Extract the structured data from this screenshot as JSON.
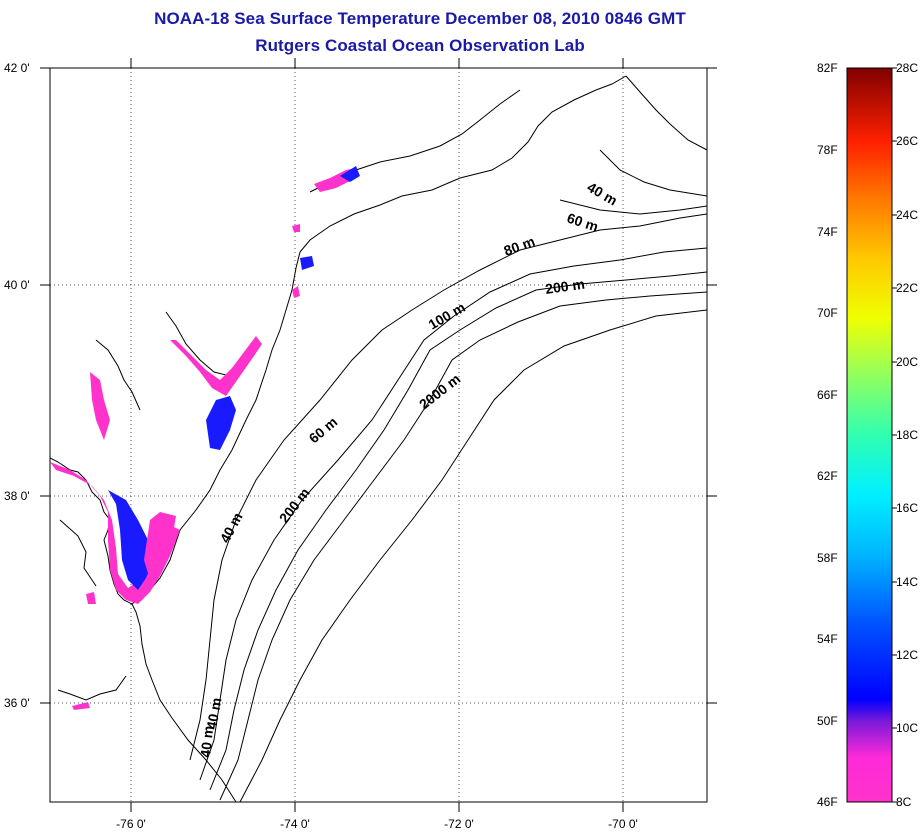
{
  "header": {
    "title": "NOAA-18 Sea Surface Temperature December 08, 2010 0846 GMT",
    "subtitle": "Rutgers Coastal Ocean Observation Lab"
  },
  "map": {
    "lat_labels": [
      "42 0'",
      "40 0'",
      "38 0'",
      "36 0'"
    ],
    "lon_labels": [
      "-76 0'",
      "-74 0'",
      "-72 0'",
      "-70 0'"
    ],
    "depth_labels": [
      "40 m",
      "60 m",
      "80 m",
      "200 m",
      "100 m",
      "2000 m",
      "60 m",
      "40 m",
      "200 m",
      "40 m",
      "40 m"
    ]
  },
  "colorbar": {
    "fahrenheit_labels": [
      "82F",
      "78F",
      "74F",
      "70F",
      "66F",
      "62F",
      "58F",
      "54F",
      "50F",
      "46F"
    ],
    "celsius_labels": [
      "28C",
      "26C",
      "24C",
      "22C",
      "20C",
      "18C",
      "16C",
      "14C",
      "12C",
      "10C",
      "8C"
    ]
  },
  "colors": {
    "title": "#1a1aa6",
    "cold_pink": "#ff33cc",
    "cold_blue": "#1a1aff"
  }
}
